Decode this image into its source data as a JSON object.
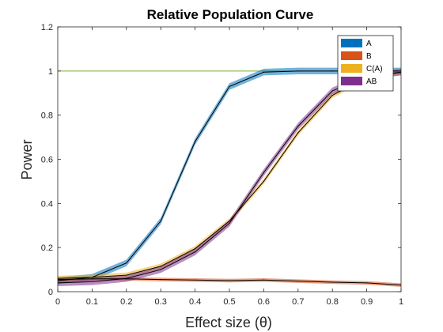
{
  "chart_data": {
    "type": "line",
    "title": "Relative Population Curve",
    "xlabel": "Effect size (θ)",
    "ylabel": "Power",
    "xlim": [
      0,
      1
    ],
    "ylim": [
      0,
      1.2
    ],
    "x_ticks": [
      "0",
      "0.1",
      "0.2",
      "0.3",
      "0.4",
      "0.5",
      "0.6",
      "0.7",
      "0.8",
      "0.9",
      "1"
    ],
    "y_ticks": [
      "0",
      "0.2",
      "0.4",
      "0.6",
      "0.8",
      "1",
      "1.2"
    ],
    "x": [
      0,
      0.1,
      0.2,
      0.3,
      0.4,
      0.5,
      0.6,
      0.7,
      0.8,
      0.9,
      1.0
    ],
    "legend_position": "top-right",
    "grid": false,
    "reference_line": {
      "y": 1,
      "color": "#77AC30"
    },
    "series": [
      {
        "name": "A",
        "color": "#0072BD",
        "values": [
          0.05,
          0.065,
          0.13,
          0.32,
          0.68,
          0.93,
          0.995,
          1.0,
          1.0,
          1.0,
          1.0
        ],
        "band": 0.015
      },
      {
        "name": "B",
        "color": "#D95319",
        "values": [
          0.055,
          0.058,
          0.058,
          0.055,
          0.053,
          0.05,
          0.053,
          0.048,
          0.043,
          0.04,
          0.03
        ],
        "band": 0.008
      },
      {
        "name": "C(A)",
        "color": "#EDB120",
        "values": [
          0.06,
          0.065,
          0.075,
          0.115,
          0.195,
          0.32,
          0.5,
          0.72,
          0.89,
          0.97,
          0.995
        ],
        "band": 0.012
      },
      {
        "name": "AB",
        "color": "#7E2F8E",
        "values": [
          0.04,
          0.045,
          0.06,
          0.1,
          0.18,
          0.31,
          0.54,
          0.75,
          0.91,
          0.975,
          0.995
        ],
        "band": 0.015
      }
    ]
  }
}
